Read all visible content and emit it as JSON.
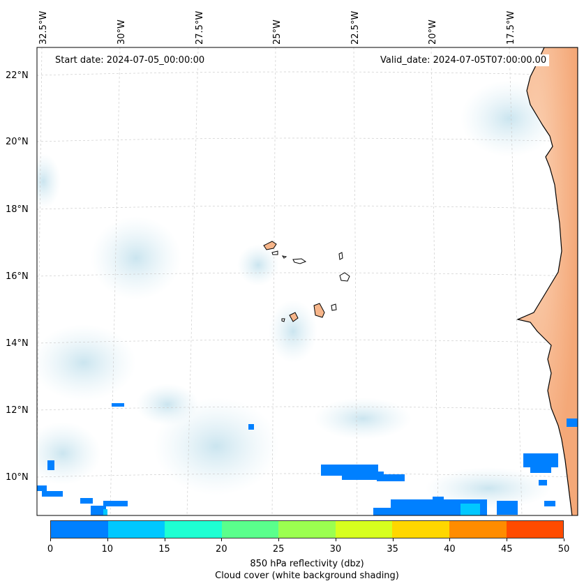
{
  "header": {
    "start_date": "Start date: 2024-07-05_00:00:00",
    "valid_date": "Valid_date: 2024-07-05T07:00:00.00"
  },
  "map": {
    "lon_labels": [
      "32.5°W",
      "30°W",
      "27.5°W",
      "25°W",
      "22.5°W",
      "20°W",
      "17.5°W"
    ],
    "lat_labels": [
      "22°N",
      "20°N",
      "18°N",
      "16°N",
      "14°N",
      "12°N",
      "10°N"
    ],
    "land_color": "#f6b58a",
    "coast_color": "#000000",
    "gridline_color": "#c8c8c8",
    "cloud_color": "#cfe6f0"
  },
  "colorbar": {
    "ticks": [
      "0",
      "10",
      "15",
      "20",
      "25",
      "30",
      "35",
      "40",
      "45",
      "50"
    ],
    "colors": [
      "#0080ff",
      "#00c8ff",
      "#1effd2",
      "#5aff8c",
      "#9bff50",
      "#d7ff1e",
      "#ffd700",
      "#ff8c00",
      "#ff4b00"
    ],
    "label": "850 hPa reflectivity (dbz)",
    "caption": "Cloud cover (white background shading)"
  }
}
